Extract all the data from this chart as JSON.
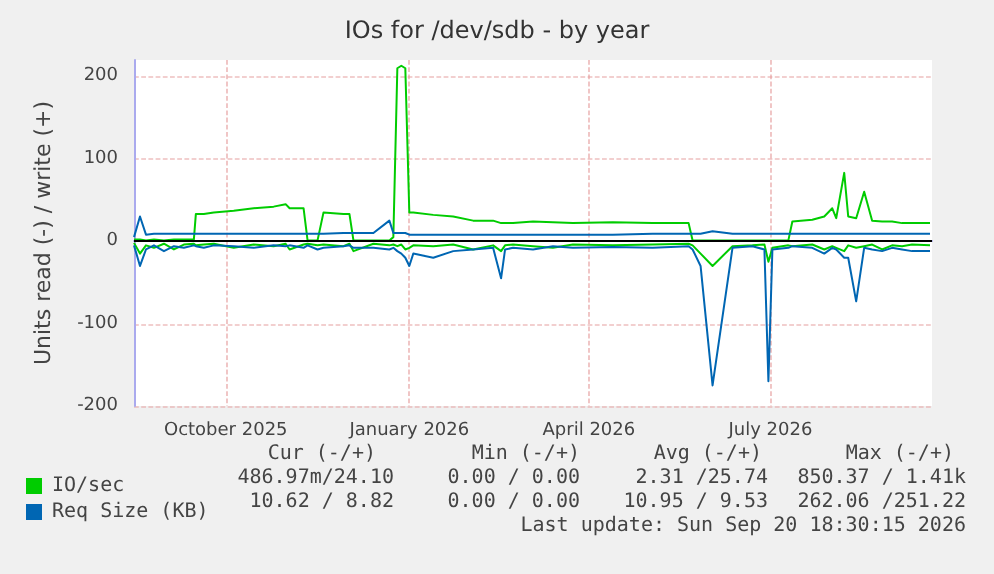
{
  "chart_data": {
    "type": "line",
    "title": "IOs for /dev/sdb - by year",
    "ylabel": "Units read (-) / write (+)",
    "x": [
      "2025-08-16",
      "2025-08-19",
      "2025-08-22",
      "2025-08-26",
      "2025-08-31",
      "2025-09-05",
      "2025-09-10",
      "2025-09-15",
      "2025-09-16",
      "2025-09-20",
      "2025-09-25",
      "2025-10-05",
      "2025-10-15",
      "2025-10-25",
      "2025-10-31",
      "2025-11-02",
      "2025-11-09",
      "2025-11-11",
      "2025-11-16",
      "2025-11-19",
      "2025-11-29",
      "2025-12-02",
      "2025-12-04",
      "2025-12-14",
      "2025-12-22",
      "2025-12-24",
      "2025-12-26",
      "2025-12-28",
      "2025-12-30",
      "2026-01-01",
      "2026-01-03",
      "2026-01-13",
      "2026-01-23",
      "2026-02-02",
      "2026-02-12",
      "2026-02-16",
      "2026-02-18",
      "2026-02-22",
      "2026-03-04",
      "2026-03-14",
      "2026-03-24",
      "2026-04-13",
      "2026-05-03",
      "2026-05-21",
      "2026-05-23",
      "2026-05-27",
      "2026-06-02",
      "2026-06-12",
      "2026-06-22",
      "2026-06-28",
      "2026-06-30",
      "2026-07-02",
      "2026-07-10",
      "2026-07-12",
      "2026-07-22",
      "2026-07-28",
      "2026-08-01",
      "2026-08-03",
      "2026-08-07",
      "2026-08-09",
      "2026-08-13",
      "2026-08-17",
      "2026-08-21",
      "2026-08-26",
      "2026-08-31",
      "2026-09-05",
      "2026-09-10",
      "2026-09-19"
    ],
    "series": [
      {
        "color": "#00cc00",
        "values": [
          -2,
          -15,
          -5,
          -8,
          -3,
          -10,
          -4,
          -3,
          -5,
          -4,
          -3,
          -8,
          -4,
          -6,
          -3,
          -10,
          -4,
          -3,
          -5,
          -4,
          -6,
          -3,
          -12,
          -3,
          -5,
          -4,
          -6,
          -4,
          -10,
          -8,
          -5,
          -6,
          -4,
          -10,
          -5,
          -12,
          -5,
          -4,
          -6,
          -8,
          -4,
          -5,
          -4,
          -3,
          -5,
          -15,
          -30,
          -6,
          -5,
          -4,
          -25,
          -8,
          -5,
          -6,
          -4,
          -10,
          -6,
          -8,
          -12,
          -5,
          -8,
          -6,
          -4,
          -10,
          -5,
          -6,
          -4,
          -5
        ]
      },
      {
        "name": "IO/sec",
        "color": "#00cc00",
        "values": [
          2,
          2,
          1,
          2,
          1,
          2,
          2,
          2,
          33,
          33,
          35,
          37,
          40,
          42,
          45,
          40,
          40,
          1,
          1,
          35,
          33,
          33,
          1,
          1,
          1,
          5,
          210,
          213,
          210,
          35,
          35,
          32,
          30,
          25,
          25,
          22,
          22,
          22,
          24,
          23,
          22,
          23,
          22,
          22,
          1,
          1,
          1,
          1,
          1,
          1,
          1,
          1,
          1,
          24,
          26,
          30,
          40,
          28,
          83,
          30,
          28,
          60,
          25,
          24,
          24,
          22,
          22,
          22
        ]
      },
      {
        "color": "#0066b3",
        "values": [
          -5,
          -30,
          -10,
          -5,
          -12,
          -6,
          -8,
          -5,
          -6,
          -8,
          -5,
          -6,
          -8,
          -5,
          -6,
          -5,
          -8,
          -5,
          -10,
          -8,
          -6,
          -5,
          -8,
          -8,
          -10,
          -8,
          -12,
          -15,
          -20,
          -30,
          -15,
          -20,
          -12,
          -10,
          -8,
          -45,
          -10,
          -8,
          -10,
          -6,
          -8,
          -7,
          -8,
          -6,
          -10,
          -30,
          -175,
          -8,
          -6,
          -10,
          -170,
          -10,
          -8,
          -6,
          -8,
          -15,
          -8,
          -10,
          -20,
          -20,
          -73,
          -8,
          -10,
          -12,
          -8,
          -10,
          -12,
          -12
        ]
      },
      {
        "name": "Req Size (KB)",
        "color": "#0066b3",
        "values": [
          5,
          30,
          8,
          9,
          9,
          9,
          9,
          9,
          9,
          9,
          9,
          9,
          9,
          9,
          9,
          9,
          9,
          9,
          9,
          9,
          10,
          10,
          10,
          10,
          25,
          10,
          10,
          10,
          10,
          8,
          8,
          8,
          8,
          8,
          8,
          8,
          8,
          8,
          8,
          8,
          8,
          8,
          9,
          9,
          9,
          9,
          12,
          9,
          9,
          9,
          9,
          9,
          9,
          9,
          9,
          9,
          9,
          9,
          9,
          9,
          9,
          9,
          9,
          9,
          9,
          9,
          9,
          9
        ]
      }
    ],
    "xlim": [
      "2025-08-16",
      "2026-09-20"
    ],
    "xticks": [
      {
        "value": "2025-10-01",
        "label": "October 2025"
      },
      {
        "value": "2026-01-01",
        "label": "January 2026"
      },
      {
        "value": "2026-04-01",
        "label": "April 2026"
      },
      {
        "value": "2026-07-01",
        "label": "July 2026"
      }
    ],
    "ylim": [
      -200,
      220
    ],
    "yticks": [
      -200,
      -100,
      0,
      100,
      200
    ],
    "ref_lines": [
      {
        "axis": "y",
        "value": 0,
        "color": "#000000"
      }
    ],
    "grid": true,
    "legend": "bottom left",
    "annotations": [
      "Cur (-/+)",
      "Min (-/+)",
      "Avg (-/+)",
      "Max (-/+)",
      "486.97m/24.10",
      "0.00 / 0.00",
      "2.31 /25.74",
      "850.37 / 1.41k",
      "10.62 / 8.82",
      "0.00 / 0.00",
      "10.95 / 9.53",
      "262.06 /251.22",
      "Last update: Sun Sep 20 18:30:15 2026"
    ]
  }
}
